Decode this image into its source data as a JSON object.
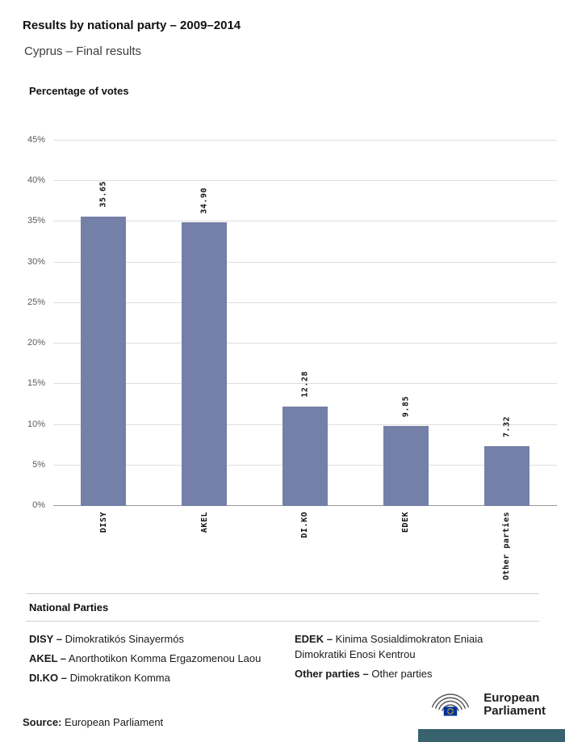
{
  "header": {
    "title": "Results by national party – 2009–2014",
    "subtitle": "Cyprus – Final results"
  },
  "chart_data": {
    "type": "bar",
    "title": "Percentage of votes",
    "categories": [
      "DISY",
      "AKEL",
      "DI.KO",
      "EDEK",
      "Other parties"
    ],
    "values": [
      35.65,
      34.9,
      12.28,
      9.85,
      7.32
    ],
    "value_labels": [
      "35.65",
      "34.90",
      "12.28",
      "9.85",
      "7.32"
    ],
    "xlabel": "",
    "ylabel": "Percentage of votes",
    "ylim": [
      0,
      45
    ],
    "y_tick_step": 5,
    "y_tick_suffix": "%",
    "grid": true,
    "legend_position": "none",
    "bar_color": "#7580A8"
  },
  "legend": {
    "heading": "National Parties",
    "columns": [
      [
        {
          "label": "DISY –",
          "name": "Dimokratikós Sinayermós"
        },
        {
          "label": "AKEL –",
          "name": "Anorthotikon Komma Ergazomenou Laou"
        },
        {
          "label": "DI.KO –",
          "name": "Dimokratikon Komma"
        }
      ],
      [
        {
          "label": "EDEK –",
          "name": "Kinima Sosialdimokraton Eniaia Dimokratiki Enosi Kentrou"
        },
        {
          "label": "Other parties –",
          "name": "Other parties"
        }
      ]
    ]
  },
  "footer": {
    "source_label": "Source:",
    "source_value": "European Parliament",
    "logo_line1": "European",
    "logo_line2": "Parliament"
  },
  "colors": {
    "bar": "#7580A8",
    "brand_strip": "#38626D",
    "eu_flag_blue": "#003399",
    "eu_star_yellow": "#FFCC00",
    "gridline": "#DEDEDE"
  }
}
